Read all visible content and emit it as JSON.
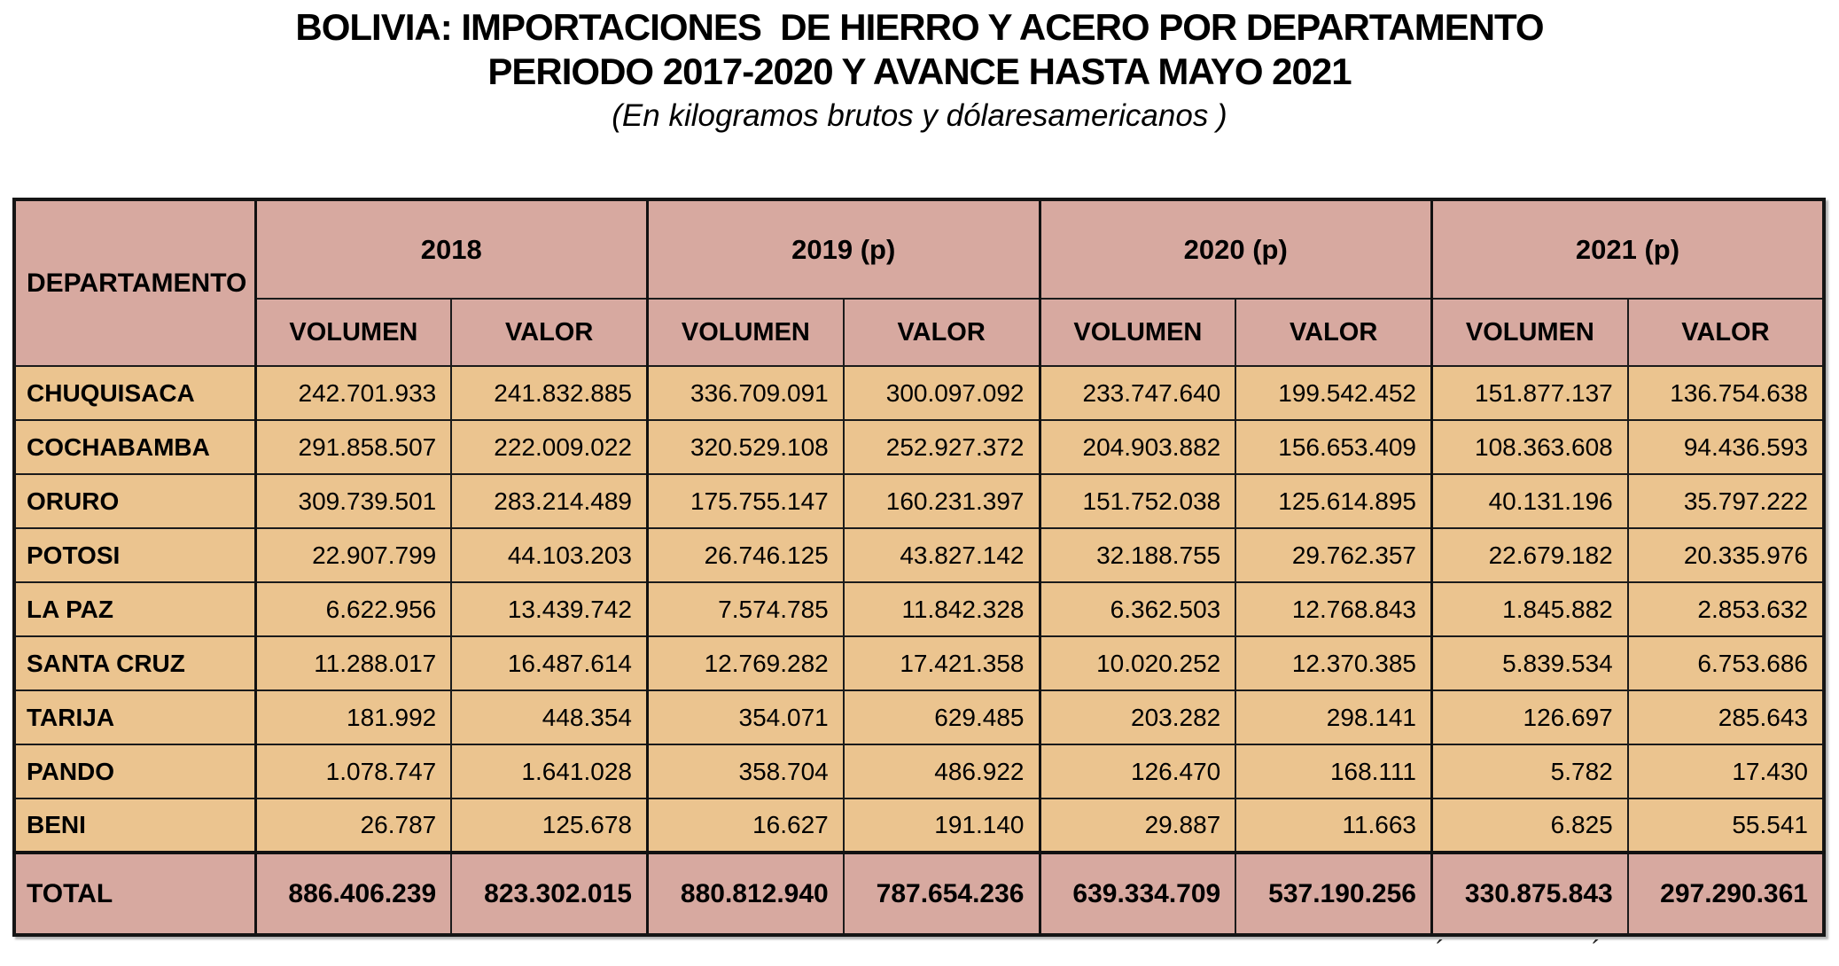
{
  "title": {
    "line1": "BOLIVIA: IMPORTACIONES  DE HIERRO Y ACERO POR DEPARTAMENTO",
    "line2": "PERIODO 2017-2020 Y AVANCE HASTA MAYO 2021",
    "subtitle": "(En kilogramos brutos y dólaresamericanos )"
  },
  "table": {
    "corner_header": "DEPARTAMENTO",
    "year_groups": [
      "2018",
      "2019 (p)",
      "2020 (p)",
      "2021 (p)"
    ],
    "sub_headers": [
      "VOLUMEN",
      "VALOR"
    ],
    "rows": [
      {
        "departamento": "CHUQUISACA",
        "values": [
          "242.701.933",
          "241.832.885",
          "336.709.091",
          "300.097.092",
          "233.747.640",
          "199.542.452",
          "151.877.137",
          "136.754.638"
        ]
      },
      {
        "departamento": "COCHABAMBA",
        "values": [
          "291.858.507",
          "222.009.022",
          "320.529.108",
          "252.927.372",
          "204.903.882",
          "156.653.409",
          "108.363.608",
          "94.436.593"
        ]
      },
      {
        "departamento": "ORURO",
        "values": [
          "309.739.501",
          "283.214.489",
          "175.755.147",
          "160.231.397",
          "151.752.038",
          "125.614.895",
          "40.131.196",
          "35.797.222"
        ]
      },
      {
        "departamento": "POTOSI",
        "values": [
          "22.907.799",
          "44.103.203",
          "26.746.125",
          "43.827.142",
          "32.188.755",
          "29.762.357",
          "22.679.182",
          "20.335.976"
        ]
      },
      {
        "departamento": "LA PAZ",
        "values": [
          "6.622.956",
          "13.439.742",
          "7.574.785",
          "11.842.328",
          "6.362.503",
          "12.768.843",
          "1.845.882",
          "2.853.632"
        ]
      },
      {
        "departamento": "SANTA CRUZ",
        "values": [
          "11.288.017",
          "16.487.614",
          "12.769.282",
          "17.421.358",
          "10.020.252",
          "12.370.385",
          "5.839.534",
          "6.753.686"
        ]
      },
      {
        "departamento": "TARIJA",
        "values": [
          "181.992",
          "448.354",
          "354.071",
          "629.485",
          "203.282",
          "298.141",
          "126.697",
          "285.643"
        ]
      },
      {
        "departamento": "PANDO",
        "values": [
          "1.078.747",
          "1.641.028",
          "358.704",
          "486.922",
          "126.470",
          "168.111",
          "5.782",
          "17.430"
        ]
      },
      {
        "departamento": "BENI",
        "values": [
          "26.787",
          "125.678",
          "16.627",
          "191.140",
          "29.887",
          "11.663",
          "6.825",
          "55.541"
        ]
      }
    ],
    "total": {
      "label": "TOTAL",
      "values": [
        "886.406.239",
        "823.302.015",
        "880.812.940",
        "787.654.236",
        "639.334.709",
        "537.190.256",
        "330.875.843",
        "297.290.361"
      ]
    }
  },
  "footer": {
    "marks": [
      "´",
      "´"
    ]
  },
  "colors": {
    "background": "#FFFFFF",
    "header_bg": "#D7A9A0",
    "row_bg": "#EBC48F",
    "border": "#1b1b1b",
    "text": "#000000"
  }
}
